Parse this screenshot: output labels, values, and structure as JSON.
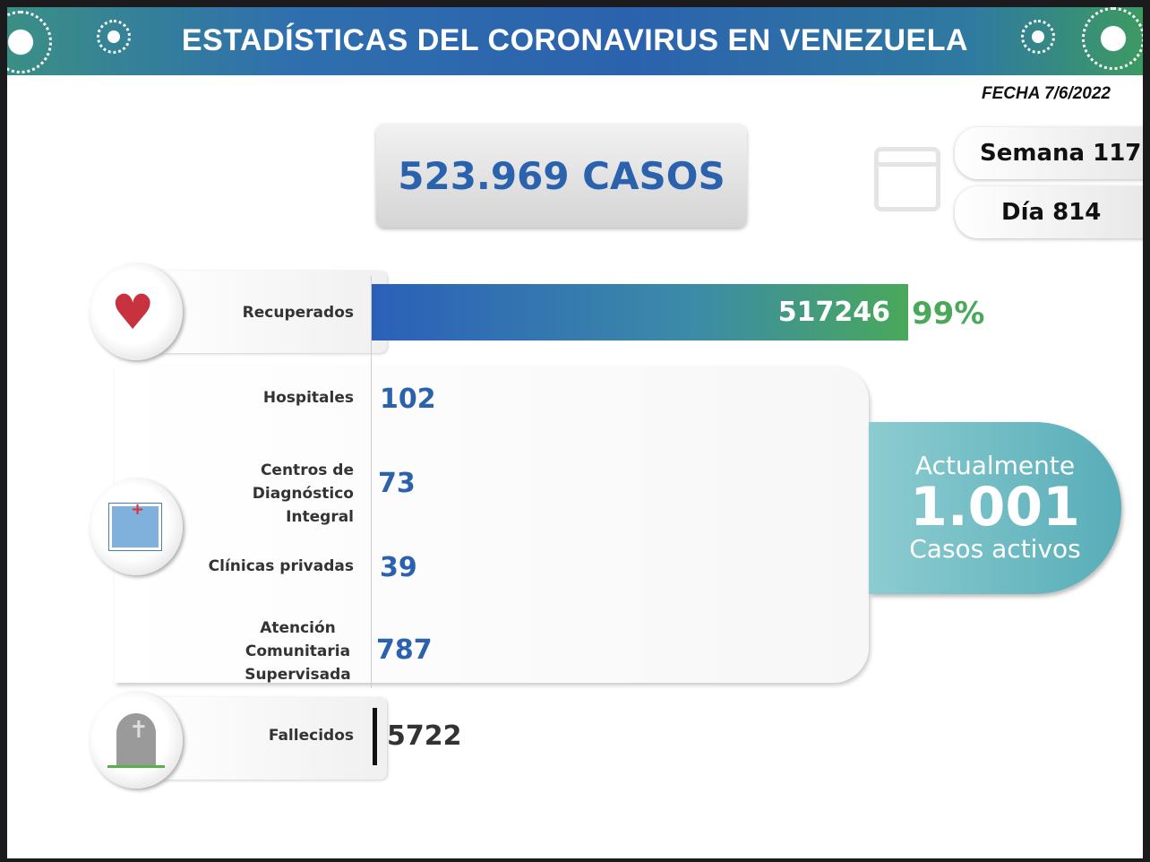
{
  "header": {
    "title": "ESTADÍSTICAS DEL CORONAVIRUS EN VENEZUELA",
    "date": "FECHA 7/6/2022"
  },
  "total_cases": "523.969 CASOS",
  "week": "Semana 117",
  "day": "Día 814",
  "recovered": {
    "label": "Recuperados",
    "value": "517246",
    "percent": "99%",
    "percent_value": 99
  },
  "active_breakdown": [
    {
      "label": "Hospitales",
      "value": "102"
    },
    {
      "label": "Centros de Diagnóstico Integral",
      "value": "73"
    },
    {
      "label": "Clínicas privadas",
      "value": "39"
    },
    {
      "label": "Atención Comunitaria Supervisada",
      "value": "787"
    }
  ],
  "active": {
    "line1": "Actualmente",
    "value": "1.001",
    "line2": "Casos activos"
  },
  "deaths": {
    "label": "Fallecidos",
    "value": "5722"
  },
  "colors": {
    "blue": "#2b62ad",
    "green": "#4aa85a",
    "teal": "#58adb8"
  }
}
